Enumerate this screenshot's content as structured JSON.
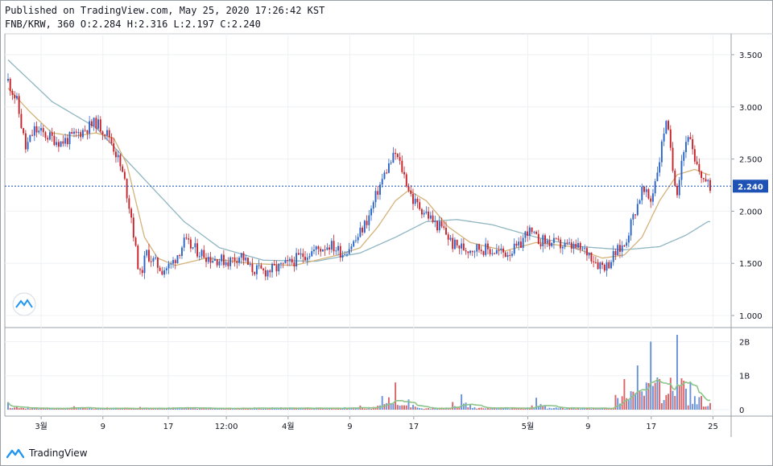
{
  "header": {
    "published": "Published on TradingView.com, May 25, 2020 17:26:42 KST",
    "symbol_line": "FNB/KRW, 360 O:2.284 H:2.316 L:2.197 C:2.240"
  },
  "footer": {
    "brand": "TradingView"
  },
  "colors": {
    "up": "#2a64c8",
    "down": "#c8232a",
    "ma_short": "#d4b27a",
    "ma_long": "#8fb6c2",
    "vol_ma": "#8cc48a",
    "last_price": "#1e53b5"
  },
  "chart_data": {
    "type": "candlestick",
    "interval": "360",
    "price_axis": {
      "ticks": [
        "1.000",
        "1.500",
        "2.000",
        "2.500",
        "3.000",
        "3.500"
      ],
      "range": [
        0.9,
        3.7
      ]
    },
    "volume_axis": {
      "ticks": [
        "0",
        "1B",
        "2B"
      ],
      "range": [
        0,
        2.2
      ]
    },
    "last_price": "2.240",
    "time_axis": [
      "3월",
      "9",
      "17",
      "12:00",
      "4월",
      "9",
      "17",
      "5월",
      "9",
      "17",
      "25"
    ],
    "price_path": [
      [
        0,
        3.25
      ],
      [
        4,
        3.05
      ],
      [
        8,
        2.6
      ],
      [
        12,
        2.78
      ],
      [
        18,
        2.72
      ],
      [
        24,
        2.66
      ],
      [
        30,
        2.72
      ],
      [
        36,
        2.8
      ],
      [
        40,
        2.85
      ],
      [
        46,
        2.72
      ],
      [
        50,
        2.5
      ],
      [
        53,
        2.28
      ],
      [
        56,
        1.95
      ],
      [
        58,
        1.62
      ],
      [
        60,
        1.38
      ],
      [
        63,
        1.6
      ],
      [
        66,
        1.52
      ],
      [
        70,
        1.44
      ],
      [
        74,
        1.48
      ],
      [
        80,
        1.7
      ],
      [
        86,
        1.62
      ],
      [
        92,
        1.55
      ],
      [
        100,
        1.52
      ],
      [
        106,
        1.58
      ],
      [
        110,
        1.45
      ],
      [
        116,
        1.42
      ],
      [
        122,
        1.45
      ],
      [
        128,
        1.5
      ],
      [
        134,
        1.58
      ],
      [
        140,
        1.63
      ],
      [
        146,
        1.68
      ],
      [
        152,
        1.6
      ],
      [
        158,
        1.72
      ],
      [
        164,
        1.95
      ],
      [
        168,
        2.2
      ],
      [
        172,
        2.4
      ],
      [
        176,
        2.55
      ],
      [
        179,
        2.4
      ],
      [
        184,
        2.1
      ],
      [
        190,
        1.98
      ],
      [
        194,
        1.88
      ],
      [
        198,
        1.82
      ],
      [
        202,
        1.68
      ],
      [
        208,
        1.64
      ],
      [
        214,
        1.65
      ],
      [
        220,
        1.62
      ],
      [
        226,
        1.6
      ],
      [
        232,
        1.65
      ],
      [
        236,
        1.82
      ],
      [
        240,
        1.73
      ],
      [
        246,
        1.7
      ],
      [
        252,
        1.67
      ],
      [
        258,
        1.65
      ],
      [
        264,
        1.6
      ],
      [
        268,
        1.5
      ],
      [
        272,
        1.48
      ],
      [
        276,
        1.6
      ],
      [
        280,
        1.68
      ],
      [
        284,
        1.95
      ],
      [
        288,
        2.2
      ],
      [
        292,
        2.1
      ],
      [
        296,
        2.5
      ],
      [
        299,
        2.9
      ],
      [
        302,
        2.4
      ],
      [
        304,
        2.2
      ],
      [
        306,
        2.5
      ],
      [
        309,
        2.75
      ],
      [
        312,
        2.45
      ],
      [
        315,
        2.35
      ],
      [
        318,
        2.24
      ]
    ],
    "ma_short": [
      [
        0,
        3.18
      ],
      [
        10,
        2.95
      ],
      [
        20,
        2.75
      ],
      [
        30,
        2.72
      ],
      [
        40,
        2.75
      ],
      [
        48,
        2.7
      ],
      [
        54,
        2.45
      ],
      [
        58,
        2.1
      ],
      [
        62,
        1.75
      ],
      [
        68,
        1.55
      ],
      [
        76,
        1.48
      ],
      [
        90,
        1.55
      ],
      [
        110,
        1.5
      ],
      [
        130,
        1.48
      ],
      [
        150,
        1.58
      ],
      [
        160,
        1.65
      ],
      [
        168,
        1.85
      ],
      [
        176,
        2.1
      ],
      [
        182,
        2.2
      ],
      [
        190,
        2.1
      ],
      [
        200,
        1.85
      ],
      [
        210,
        1.7
      ],
      [
        226,
        1.62
      ],
      [
        240,
        1.7
      ],
      [
        256,
        1.66
      ],
      [
        270,
        1.55
      ],
      [
        280,
        1.58
      ],
      [
        288,
        1.75
      ],
      [
        296,
        2.1
      ],
      [
        304,
        2.35
      ],
      [
        312,
        2.4
      ],
      [
        318,
        2.35
      ]
    ],
    "ma_long": [
      [
        0,
        3.45
      ],
      [
        20,
        3.05
      ],
      [
        40,
        2.8
      ],
      [
        60,
        2.35
      ],
      [
        80,
        1.9
      ],
      [
        96,
        1.65
      ],
      [
        116,
        1.53
      ],
      [
        140,
        1.52
      ],
      [
        160,
        1.6
      ],
      [
        176,
        1.75
      ],
      [
        190,
        1.9
      ],
      [
        204,
        1.92
      ],
      [
        220,
        1.87
      ],
      [
        240,
        1.75
      ],
      [
        260,
        1.66
      ],
      [
        280,
        1.63
      ],
      [
        296,
        1.66
      ],
      [
        308,
        1.77
      ],
      [
        318,
        1.9
      ]
    ],
    "volume_bursts": [
      [
        0,
        0.22
      ],
      [
        30,
        0.1
      ],
      [
        60,
        0.08
      ],
      [
        100,
        0.05
      ],
      [
        160,
        0.12
      ],
      [
        170,
        0.4
      ],
      [
        176,
        0.8
      ],
      [
        182,
        0.3
      ],
      [
        206,
        0.45
      ],
      [
        240,
        0.35
      ],
      [
        280,
        0.9
      ],
      [
        286,
        1.3
      ],
      [
        292,
        2.0
      ],
      [
        296,
        0.9
      ],
      [
        304,
        2.2
      ],
      [
        310,
        0.8
      ],
      [
        315,
        0.4
      ]
    ],
    "candle_count": 320
  }
}
